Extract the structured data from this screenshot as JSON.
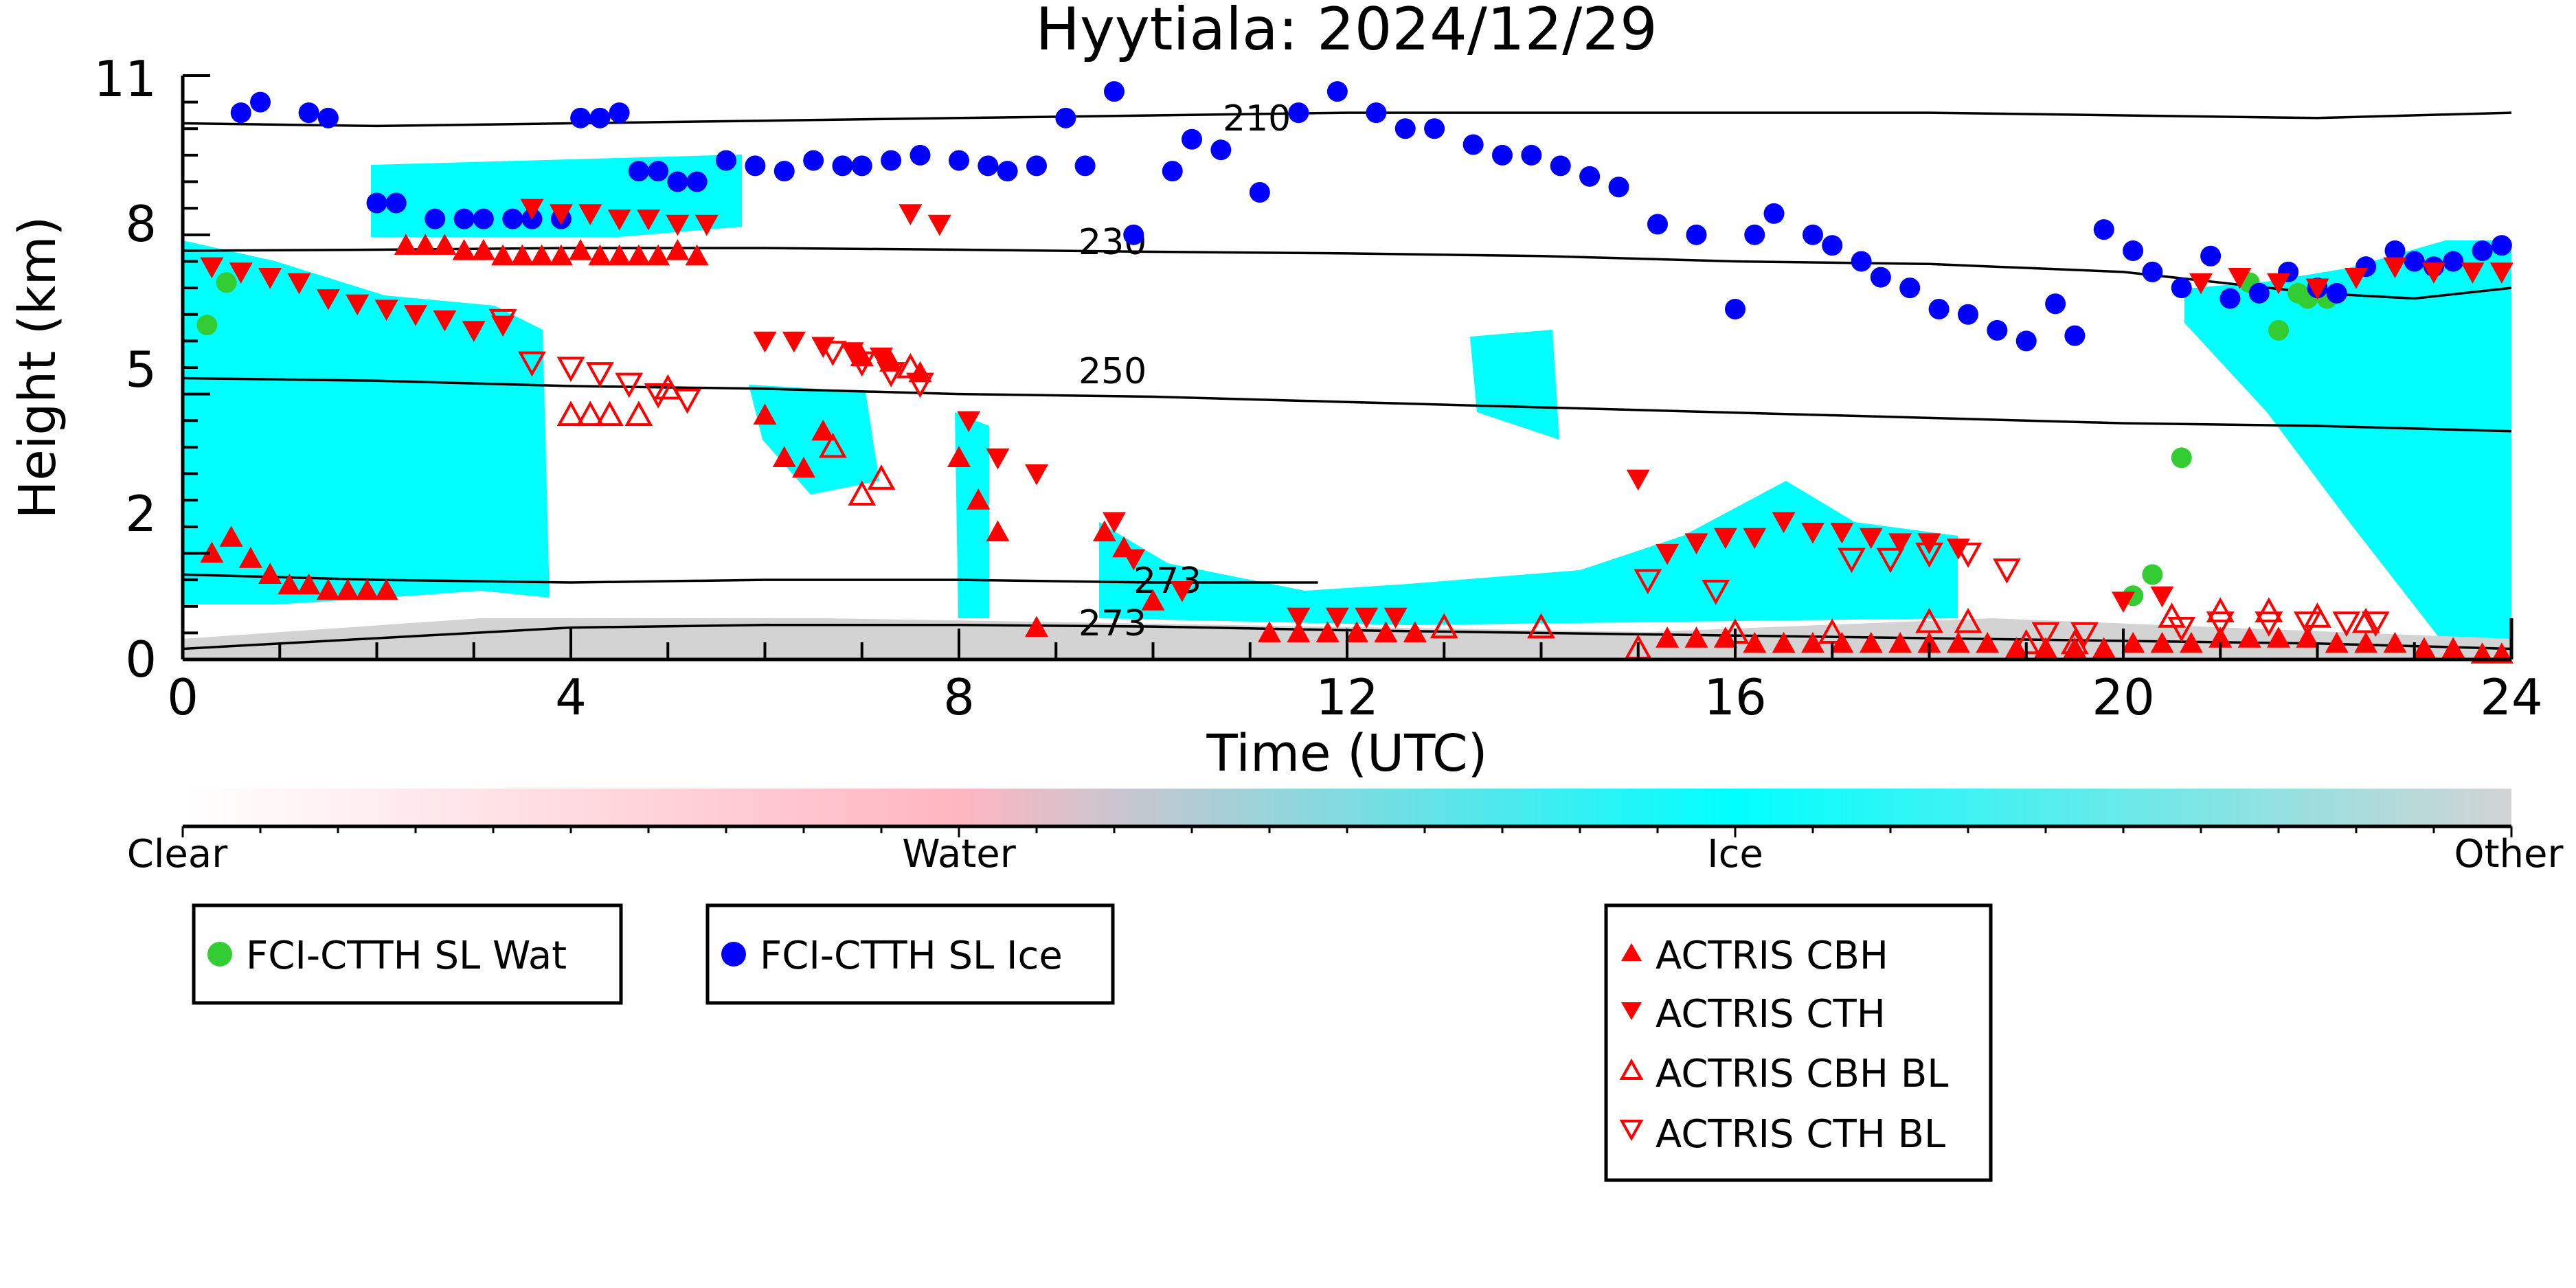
{
  "chart_data": {
    "type": "scatter",
    "title": "Hyytiala: 2024/12/29",
    "xlabel": "Time (UTC)",
    "ylabel": "Height (km)",
    "xlim": [
      0,
      24
    ],
    "ylim": [
      0,
      11
    ],
    "xticks": [
      "0",
      "4",
      "8",
      "12",
      "16",
      "20",
      "24"
    ],
    "yticks": [
      "0",
      "2",
      "5",
      "8",
      "11"
    ],
    "colorbar": {
      "labels": [
        "Clear",
        "Water",
        "Ice",
        "Other"
      ],
      "colors": [
        "#ffffff",
        "#ffb6c1",
        "#00ffff",
        "#d3d3d3"
      ]
    },
    "contour_labels": [
      "210",
      "230",
      "250",
      "273",
      "273"
    ],
    "legend": [
      {
        "label": "FCI-CTTH SL Wat",
        "marker": "circle",
        "color": "#33cc33"
      },
      {
        "label": "FCI-CTTH SL Ice",
        "marker": "circle",
        "color": "#0000ff"
      },
      {
        "label": "ACTRIS CBH",
        "marker": "triangle-up",
        "color": "#ff0000"
      },
      {
        "label": "ACTRIS CTH",
        "marker": "triangle-down",
        "color": "#ff0000"
      },
      {
        "label": "ACTRIS CBH BL",
        "marker": "triangle-up-open",
        "color": "#ff0000"
      },
      {
        "label": "ACTRIS CTH BL",
        "marker": "triangle-down-open",
        "color": "#ff0000"
      }
    ],
    "series": [
      {
        "name": "FCI-CTTH SL Wat",
        "x": [
          0.25,
          0.45,
          20.1,
          20.3,
          20.6,
          21.3,
          21.6,
          21.8,
          21.9,
          22.1
        ],
        "y": [
          6.3,
          7.1,
          1.2,
          1.6,
          3.8,
          7.1,
          6.2,
          6.9,
          6.8,
          6.8
        ]
      },
      {
        "name": "FCI-CTTH SL Ice",
        "x": [
          0.6,
          0.8,
          1.3,
          1.5,
          2.0,
          2.2,
          2.6,
          2.9,
          3.1,
          3.4,
          3.6,
          3.9,
          4.1,
          4.3,
          4.5,
          4.7,
          4.9,
          5.1,
          5.3,
          5.6,
          5.9,
          6.2,
          6.5,
          6.8,
          7.0,
          7.3,
          7.6,
          8.0,
          8.3,
          8.5,
          8.8,
          9.1,
          9.3,
          9.6,
          9.8,
          10.2,
          10.4,
          10.7,
          11.1,
          11.5,
          11.9,
          12.3,
          12.6,
          12.9,
          13.3,
          13.6,
          13.9,
          14.2,
          14.5,
          14.8,
          15.2,
          15.6,
          16.0,
          16.2,
          16.4,
          16.8,
          17.0,
          17.3,
          17.5,
          17.8,
          18.1,
          18.4,
          18.7,
          19.0,
          19.3,
          19.5,
          19.8,
          20.1,
          20.3,
          20.6,
          20.9,
          21.1,
          21.4,
          21.7,
          22.0,
          22.2,
          22.5,
          22.8,
          23.0,
          23.2,
          23.4,
          23.7,
          23.9
        ],
        "y": [
          10.3,
          10.5,
          10.3,
          10.2,
          8.6,
          8.6,
          8.3,
          8.3,
          8.3,
          8.3,
          8.3,
          8.3,
          10.2,
          10.2,
          10.3,
          9.2,
          9.2,
          9.0,
          9.0,
          9.4,
          9.3,
          9.2,
          9.4,
          9.3,
          9.3,
          9.4,
          9.5,
          9.4,
          9.3,
          9.2,
          9.3,
          10.2,
          9.3,
          10.7,
          8.0,
          9.2,
          9.8,
          9.6,
          8.8,
          10.3,
          10.7,
          10.3,
          10.0,
          10.0,
          9.7,
          9.5,
          9.5,
          9.3,
          9.1,
          8.9,
          8.2,
          8.0,
          6.6,
          8.0,
          8.4,
          8.0,
          7.8,
          7.5,
          7.2,
          7.0,
          6.6,
          6.5,
          6.2,
          6.0,
          6.7,
          6.1,
          8.1,
          7.7,
          7.3,
          7.0,
          7.6,
          6.8,
          6.9,
          7.3,
          7.0,
          6.9,
          7.4,
          7.7,
          7.5,
          7.4,
          7.5,
          7.7,
          7.8
        ],
        "note": ""
      },
      {
        "name": "ACTRIS CBH",
        "x": [
          0.3,
          0.5,
          0.7,
          0.9,
          1.1,
          1.3,
          1.5,
          1.7,
          1.9,
          2.1,
          2.3,
          2.5,
          2.7,
          2.9,
          3.1,
          3.3,
          3.5,
          3.7,
          3.9,
          4.1,
          4.3,
          4.5,
          4.7,
          4.9,
          5.1,
          5.3,
          6.0,
          6.2,
          6.4,
          6.6,
          7.0,
          7.3,
          7.6,
          8.0,
          8.2,
          8.4,
          8.8,
          9.5,
          9.7,
          10.0,
          11.2,
          11.5,
          11.8,
          12.1,
          12.4,
          12.7,
          15.3,
          15.6,
          15.9,
          16.2,
          16.5,
          16.8,
          17.1,
          17.4,
          17.7,
          18.0,
          18.3,
          18.6,
          18.9,
          19.2,
          19.5,
          19.8,
          20.1,
          20.4,
          20.7,
          21.0,
          21.3,
          21.6,
          21.9,
          22.2,
          22.5,
          22.8,
          23.1,
          23.4,
          23.7,
          23.9
        ],
        "y": [
          2.0,
          2.3,
          1.9,
          1.6,
          1.4,
          1.4,
          1.3,
          1.3,
          1.3,
          1.3,
          7.8,
          7.8,
          7.8,
          7.7,
          7.7,
          7.6,
          7.6,
          7.6,
          7.6,
          7.7,
          7.6,
          7.6,
          7.6,
          7.6,
          7.7,
          7.6,
          4.6,
          3.8,
          3.6,
          4.3,
          5.7,
          5.6,
          5.4,
          3.8,
          3.0,
          2.4,
          0.6,
          2.4,
          2.1,
          1.1,
          0.5,
          0.5,
          0.5,
          0.5,
          0.5,
          0.5,
          0.4,
          0.4,
          0.4,
          0.3,
          0.3,
          0.3,
          0.3,
          0.3,
          0.3,
          0.3,
          0.3,
          0.3,
          0.2,
          0.2,
          0.2,
          0.2,
          0.3,
          0.3,
          0.3,
          0.4,
          0.4,
          0.4,
          0.4,
          0.3,
          0.3,
          0.3,
          0.2,
          0.2,
          0.1,
          0.1
        ]
      },
      {
        "name": "ACTRIS CTH",
        "x": [
          0.3,
          0.6,
          0.9,
          1.2,
          1.5,
          1.8,
          2.1,
          2.4,
          2.7,
          3.0,
          3.3,
          3.6,
          3.9,
          4.2,
          4.5,
          4.8,
          5.1,
          5.4,
          6.0,
          6.3,
          6.6,
          6.9,
          7.2,
          7.5,
          7.8,
          8.1,
          8.4,
          8.8,
          9.6,
          9.8,
          10.3,
          11.5,
          11.9,
          12.2,
          12.5,
          15.0,
          15.3,
          15.6,
          15.9,
          16.2,
          16.5,
          16.8,
          17.1,
          17.4,
          17.7,
          18.0,
          18.3,
          20.0,
          20.4,
          20.8,
          21.2,
          21.6,
          22.0,
          22.4,
          22.8,
          23.2,
          23.6,
          23.9
        ],
        "y": [
          7.4,
          7.3,
          7.2,
          7.1,
          6.8,
          6.7,
          6.6,
          6.5,
          6.4,
          6.2,
          6.3,
          8.5,
          8.4,
          8.4,
          8.3,
          8.3,
          8.2,
          8.2,
          6.0,
          6.0,
          5.9,
          5.8,
          5.7,
          8.4,
          8.2,
          4.5,
          3.8,
          3.5,
          2.6,
          1.9,
          1.3,
          0.8,
          0.8,
          0.8,
          0.8,
          3.4,
          2.0,
          2.2,
          2.3,
          2.3,
          2.6,
          2.4,
          2.4,
          2.3,
          2.2,
          2.2,
          2.1,
          1.1,
          1.2,
          7.1,
          7.2,
          7.1,
          7.0,
          7.2,
          7.4,
          7.3,
          7.3,
          7.3
        ]
      },
      {
        "name": "ACTRIS CBH BL",
        "x": [
          4.0,
          4.2,
          4.4,
          4.7,
          5.0,
          6.7,
          7.0,
          7.2,
          7.5,
          13.0,
          14.0,
          15.0,
          16.0,
          17.0,
          18.0,
          18.4,
          19.0,
          19.5,
          20.5,
          21.0,
          21.5,
          22.0,
          22.5
        ],
        "y": [
          4.6,
          4.6,
          4.6,
          4.6,
          5.1,
          4.0,
          3.1,
          3.4,
          5.5,
          0.6,
          0.6,
          0.2,
          0.5,
          0.5,
          0.7,
          0.7,
          0.3,
          0.3,
          0.8,
          0.9,
          0.9,
          0.8,
          0.7
        ]
      },
      {
        "name": "ACTRIS CTH BL",
        "x": [
          3.3,
          3.6,
          4.0,
          4.3,
          4.6,
          4.9,
          5.2,
          6.7,
          7.0,
          7.3,
          7.6,
          15.1,
          15.8,
          17.2,
          17.6,
          18.0,
          18.4,
          18.8,
          19.2,
          19.6,
          20.6,
          21.0,
          21.5,
          21.9,
          22.3,
          22.6
        ],
        "y": [
          6.4,
          5.6,
          5.5,
          5.4,
          5.2,
          5.0,
          4.9,
          5.8,
          5.6,
          5.4,
          5.2,
          1.5,
          1.3,
          1.9,
          1.9,
          2.0,
          2.0,
          1.7,
          0.5,
          0.5,
          0.6,
          0.7,
          0.7,
          0.7,
          0.7,
          0.7
        ]
      }
    ],
    "contours": [
      {
        "label": "210",
        "x": [
          0,
          2,
          4,
          6,
          8,
          10,
          12,
          14,
          16,
          18,
          20,
          22,
          24
        ],
        "y": [
          10.1,
          10.05,
          10.1,
          10.15,
          10.2,
          10.25,
          10.3,
          10.3,
          10.3,
          10.3,
          10.25,
          10.2,
          10.3
        ]
      },
      {
        "label": "230",
        "x": [
          0,
          2,
          4,
          6,
          8,
          10,
          12,
          14,
          16,
          18,
          20,
          22,
          23,
          24
        ],
        "y": [
          7.7,
          7.72,
          7.75,
          7.75,
          7.72,
          7.68,
          7.65,
          7.6,
          7.5,
          7.45,
          7.3,
          6.9,
          6.8,
          7.0
        ]
      },
      {
        "label": "250",
        "x": [
          0,
          2,
          4,
          6,
          8,
          10,
          12,
          14,
          16,
          18,
          20,
          22,
          24
        ],
        "y": [
          5.3,
          5.25,
          5.15,
          5.1,
          5.0,
          4.95,
          4.85,
          4.75,
          4.65,
          4.55,
          4.45,
          4.4,
          4.3
        ]
      },
      {
        "label": "273",
        "x": [
          0,
          2,
          4,
          6,
          8,
          10,
          11.7
        ],
        "y": [
          1.6,
          1.5,
          1.45,
          1.5,
          1.5,
          1.45,
          1.45
        ]
      },
      {
        "label": "273",
        "x": [
          0,
          2,
          4,
          6,
          8,
          10,
          12,
          14,
          16,
          18,
          20,
          22,
          24
        ],
        "y": [
          0.2,
          0.4,
          0.6,
          0.65,
          0.65,
          0.62,
          0.55,
          0.5,
          0.45,
          0.4,
          0.35,
          0.3,
          0.2
        ]
      }
    ]
  }
}
